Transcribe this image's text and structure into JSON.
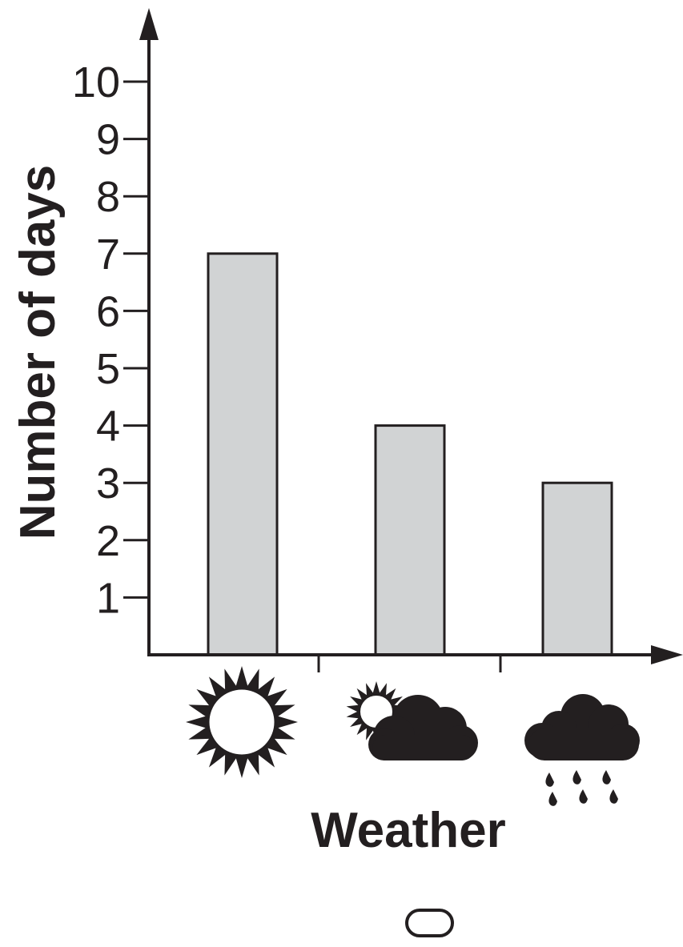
{
  "chart_data": {
    "type": "bar",
    "categories": [
      "sunny",
      "partly cloudy",
      "rainy"
    ],
    "category_icons": [
      "sun-icon",
      "partly-cloudy-icon",
      "rain-cloud-icon"
    ],
    "values": [
      7,
      4,
      3
    ],
    "xlabel": "Weather",
    "ylabel": "Number of days",
    "ylim": [
      0,
      10
    ],
    "yticks": [
      1,
      2,
      3,
      4,
      5,
      6,
      7,
      8,
      9,
      10
    ],
    "grid": false,
    "legend": "none"
  },
  "colors": {
    "bar_fill": "#d1d3d4",
    "ink": "#231f20"
  },
  "footer_icon": "rounded-rect-icon"
}
